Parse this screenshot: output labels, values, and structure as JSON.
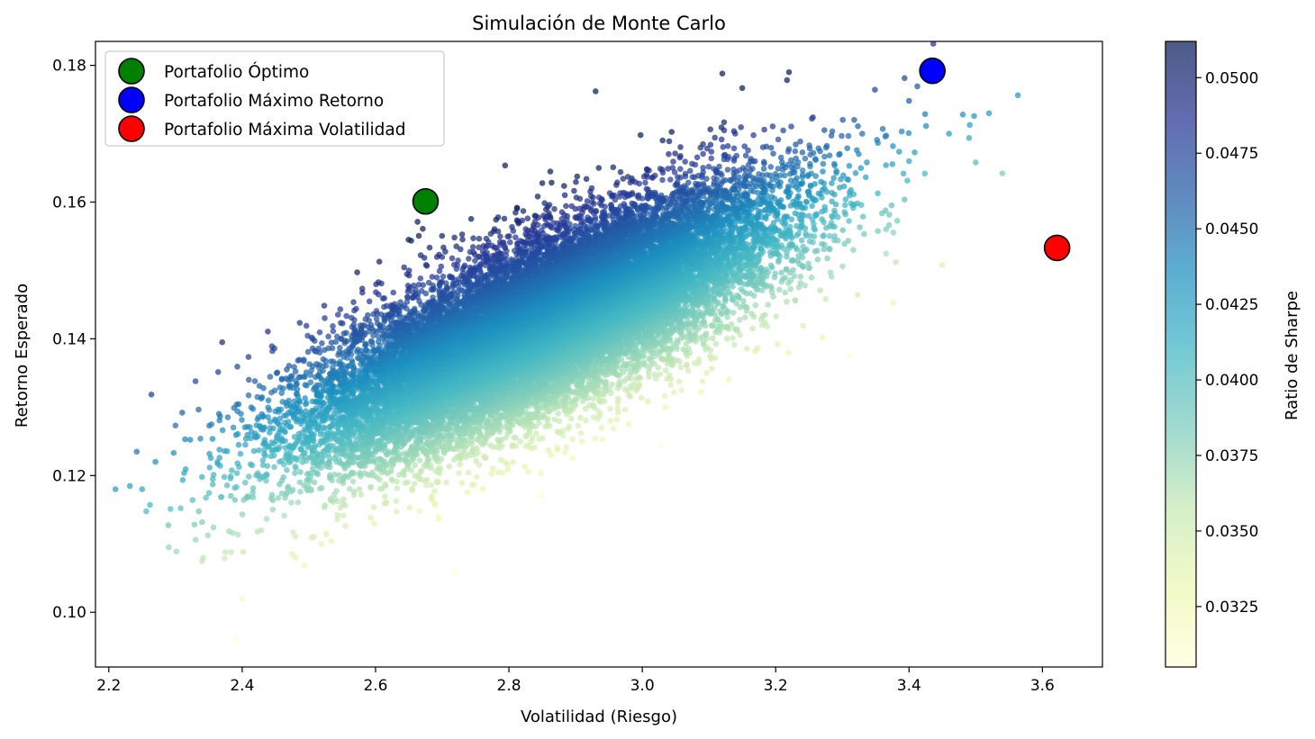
{
  "chart_data": {
    "type": "scatter",
    "title": "Simulación de Monte Carlo",
    "xlabel": "Volatilidad (Riesgo)",
    "ylabel": "Retorno Esperado",
    "xlim": [
      2.18,
      3.69
    ],
    "ylim": [
      0.092,
      0.1835
    ],
    "x_ticks": [
      2.2,
      2.4,
      2.6,
      2.8,
      3.0,
      3.2,
      3.4,
      3.6
    ],
    "x_tick_labels": [
      "2.2",
      "2.4",
      "2.6",
      "2.8",
      "3.0",
      "3.2",
      "3.4",
      "3.6"
    ],
    "y_ticks": [
      0.1,
      0.12,
      0.14,
      0.16,
      0.18
    ],
    "y_tick_labels": [
      "0.10",
      "0.12",
      "0.14",
      "0.16",
      "0.18"
    ],
    "grid": false,
    "legend_position": "top-left",
    "colormap": "YlGnBu",
    "colorbar": {
      "label": "Ratio de Sharpe",
      "range": [
        0.0305,
        0.0512
      ],
      "ticks": [
        0.0325,
        0.035,
        0.0375,
        0.04,
        0.0425,
        0.045,
        0.0475,
        0.05
      ],
      "tick_labels": [
        "0.0325",
        "0.0350",
        "0.0375",
        "0.0400",
        "0.0425",
        "0.0450",
        "0.0475",
        "0.0500"
      ]
    },
    "simulation": {
      "description": "Dense cloud of simulated portfolios (about 20000), colored by Sharpe ratio",
      "count": 20000,
      "center": [
        2.85,
        0.142
      ],
      "x_std": 0.17,
      "y_std": 0.0095,
      "correlation": 0.75,
      "outliers": [
        [
          2.25,
          0.118
        ],
        [
          2.29,
          0.1095
        ],
        [
          2.34,
          0.1075
        ],
        [
          2.4,
          0.102
        ],
        [
          2.39,
          0.096
        ],
        [
          2.72,
          0.1058
        ],
        [
          2.48,
          0.108
        ],
        [
          3.5,
          0.1658
        ],
        [
          3.52,
          0.173
        ],
        [
          3.54,
          0.1642
        ],
        [
          3.46,
          0.17
        ],
        [
          3.45,
          0.1508
        ],
        [
          3.31,
          0.1375
        ],
        [
          3.27,
          0.1402
        ],
        [
          3.12,
          0.1788
        ],
        [
          3.22,
          0.179
        ],
        [
          2.93,
          0.1762
        ],
        [
          3.4,
          0.1748
        ],
        [
          2.33,
          0.1338
        ],
        [
          2.37,
          0.1395
        ],
        [
          2.27,
          0.122
        ],
        [
          2.31,
          0.1292
        ],
        [
          3.38,
          0.1512
        ],
        [
          2.21,
          0.118
        ]
      ]
    },
    "highlights": [
      {
        "name": "Portafolio Óptimo",
        "x": 2.675,
        "y": 0.1601,
        "color": "#008000"
      },
      {
        "name": "Portafolio Máximo Retorno",
        "x": 3.435,
        "y": 0.1792,
        "color": "#0000ff"
      },
      {
        "name": "Portafolio Máxima Volatilidad",
        "x": 3.622,
        "y": 0.1533,
        "color": "#ff0000"
      }
    ]
  }
}
